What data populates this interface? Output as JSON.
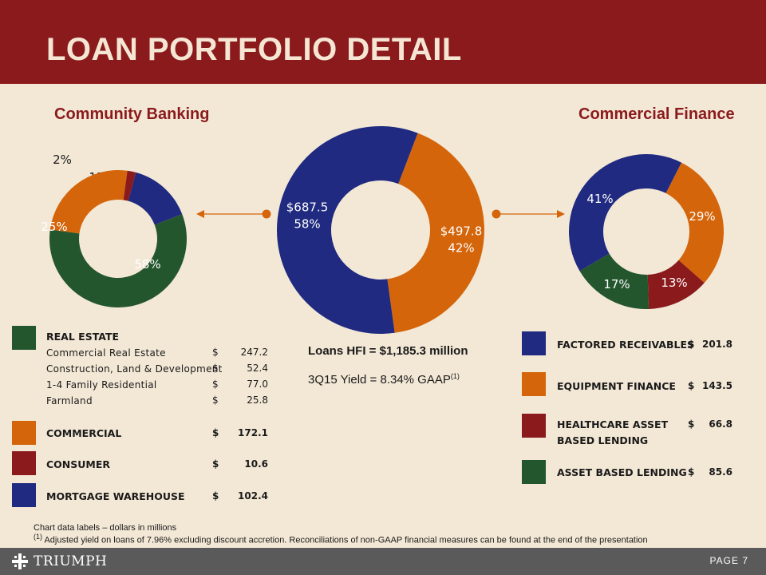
{
  "header": {
    "title": "LOAN PORTFOLIO DETAIL"
  },
  "colors": {
    "red": "#8b1a1d",
    "navy": "#1f2a80",
    "orange": "#d4650b",
    "green": "#24562e",
    "cream": "#f3e8d6"
  },
  "chart_data": [
    {
      "type": "pie",
      "title": "Community Banking",
      "slices": [
        {
          "label": "15%",
          "value": 15,
          "color": "#1f2a80"
        },
        {
          "label": "58%",
          "value": 58,
          "color": "#24562e"
        },
        {
          "label": "25%",
          "value": 25,
          "color": "#d4650b"
        },
        {
          "label": "2%",
          "value": 2,
          "color": "#8b1a1d"
        }
      ]
    },
    {
      "type": "pie",
      "title": "",
      "slices": [
        {
          "label": "$497.8",
          "pct": "42%",
          "value": 497.8,
          "color": "#d4650b"
        },
        {
          "label": "$687.5",
          "pct": "58%",
          "value": 687.5,
          "color": "#1f2a80"
        }
      ]
    },
    {
      "type": "pie",
      "title": "Commercial Finance",
      "slices": [
        {
          "label": "29%",
          "value": 29,
          "color": "#d4650b"
        },
        {
          "label": "13%",
          "value": 13,
          "color": "#8b1a1d"
        },
        {
          "label": "17%",
          "value": 17,
          "color": "#24562e"
        },
        {
          "label": "41%",
          "value": 41,
          "color": "#1f2a80"
        }
      ]
    }
  ],
  "left_legend": {
    "real_estate": {
      "label": "REAL ESTATE",
      "items": [
        {
          "label": "Commercial Real Estate",
          "dollar": "$",
          "value": "247.2"
        },
        {
          "label": "Construction, Land & Development",
          "dollar": "$",
          "value": "52.4"
        },
        {
          "label": "1-4 Family Residential",
          "dollar": "$",
          "value": "77.0"
        },
        {
          "label": "Farmland",
          "dollar": "$",
          "value": "25.8"
        }
      ]
    },
    "commercial": {
      "label": "COMMERCIAL",
      "dollar": "$",
      "value": "172.1"
    },
    "consumer": {
      "label": "CONSUMER",
      "dollar": "$",
      "value": "10.6"
    },
    "mortgage": {
      "label": "MORTGAGE WAREHOUSE",
      "dollar": "$",
      "value": "102.4"
    }
  },
  "right_legend": [
    {
      "label": "FACTORED RECEIVABLES",
      "label2": "",
      "dollar": "$",
      "value": "201.8",
      "color": "#1f2a80"
    },
    {
      "label": "EQUIPMENT FINANCE",
      "label2": "",
      "dollar": "$",
      "value": "143.5",
      "color": "#d4650b"
    },
    {
      "label": "HEALTHCARE ASSET",
      "label2": "BASED LENDING",
      "dollar": "$",
      "value": "66.8",
      "color": "#8b1a1d"
    },
    {
      "label": "ASSET BASED LENDING",
      "label2": "",
      "dollar": "$",
      "value": "85.6",
      "color": "#24562e"
    }
  ],
  "center": {
    "loans": "Loans HFI = $1,185.3 million",
    "yield": "3Q15 Yield = 8.34% GAAP",
    "yield_sup": "(1)"
  },
  "footnotes": {
    "line1": "Chart data labels – dollars in millions",
    "line2_sup": "(1)",
    "line2": " Adjusted yield on loans of 7.96% excluding discount accretion. Reconciliations of non-GAAP financial measures can be found at the end of the presentation"
  },
  "footer": {
    "logo": "TRIUMPH",
    "page": "PAGE 7"
  }
}
